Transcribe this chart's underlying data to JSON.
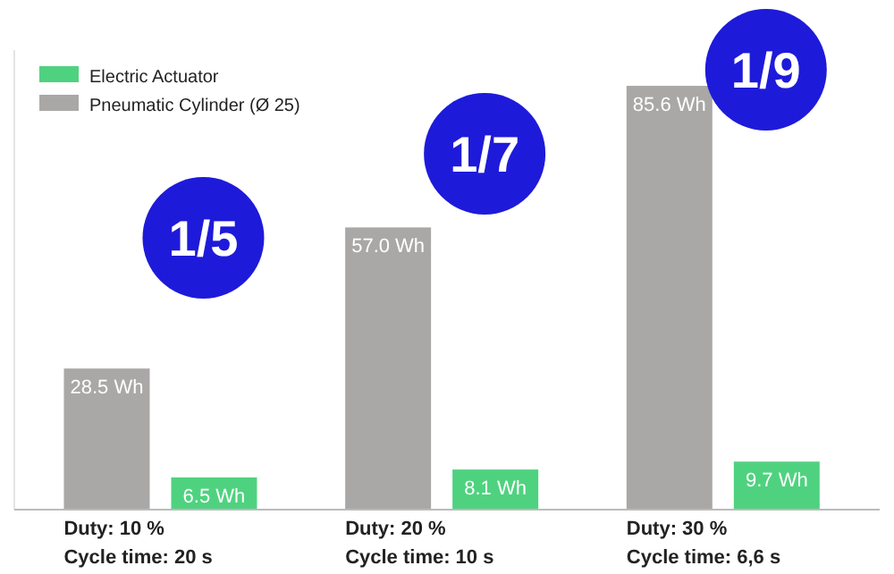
{
  "chart_data": {
    "type": "bar",
    "categories": [
      "Duty: 10 %\nCycle time: 20 s",
      "Duty: 20 %\nCycle time: 10 s",
      "Duty: 30 %\nCycle time: 6,6 s"
    ],
    "series": [
      {
        "name": "Pneumatic Cylinder (Ø 25)",
        "color": "#aaa7a7",
        "values": [
          28.5,
          57.0,
          85.6
        ],
        "value_labels": [
          "28.5 Wh",
          "57.0 Wh",
          "85.6 Wh"
        ]
      },
      {
        "name": "Electric Actuator",
        "color": "#4fd27f",
        "values": [
          6.5,
          8.1,
          9.7
        ],
        "value_labels": [
          "6.5 Wh",
          "8.1 Wh",
          "9.7 Wh"
        ]
      }
    ],
    "annotations": [
      "1/5",
      "1/7",
      "1/9"
    ],
    "legend": "top left"
  }
}
